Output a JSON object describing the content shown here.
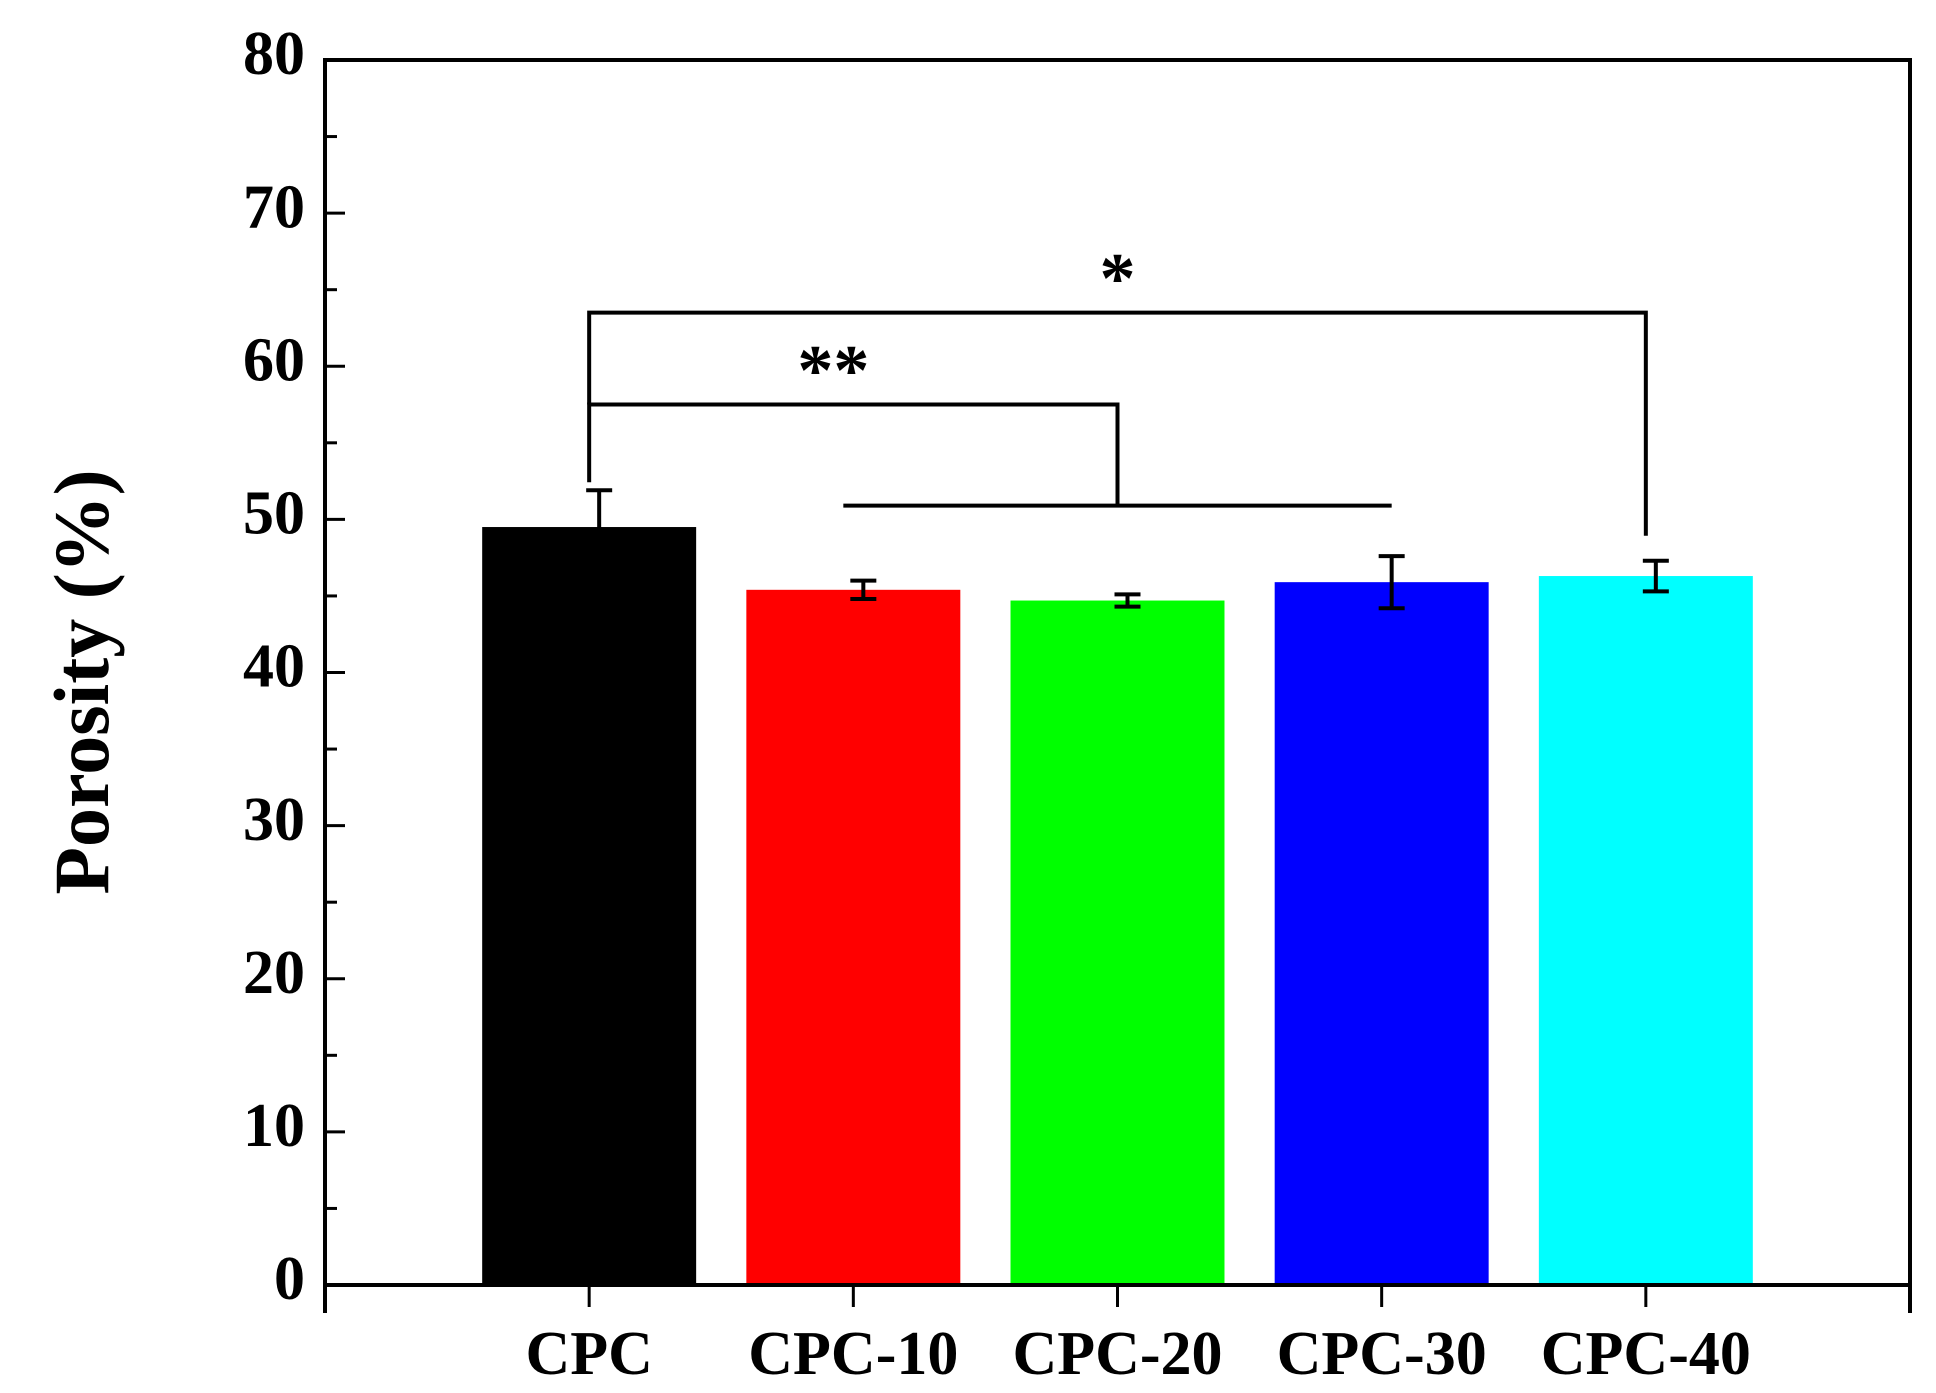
{
  "chart_data": {
    "type": "bar",
    "categories": [
      "CPC",
      "CPC-10",
      "CPC-20",
      "CPC-30",
      "CPC-40"
    ],
    "values": [
      49.5,
      45.4,
      44.7,
      45.9,
      46.3
    ],
    "errors": [
      2.4,
      0.6,
      0.4,
      1.7,
      1.0
    ],
    "colors": [
      "#000000",
      "#ff0000",
      "#00ff00",
      "#0000ff",
      "#00ffff"
    ],
    "xlabel": "",
    "ylabel": "Porosity (%)",
    "ylim": [
      0,
      80
    ],
    "yticks": [
      0,
      10,
      20,
      30,
      40,
      50,
      60,
      70,
      80
    ],
    "grid": false,
    "legend": "none",
    "annotations": [
      {
        "label": "**",
        "from": "CPC",
        "to_group": [
          "CPC-10",
          "CPC-20",
          "CPC-30"
        ],
        "level": 57.5
      },
      {
        "label": "*",
        "from": "CPC",
        "to": "CPC-40",
        "level": 63.5
      }
    ]
  }
}
